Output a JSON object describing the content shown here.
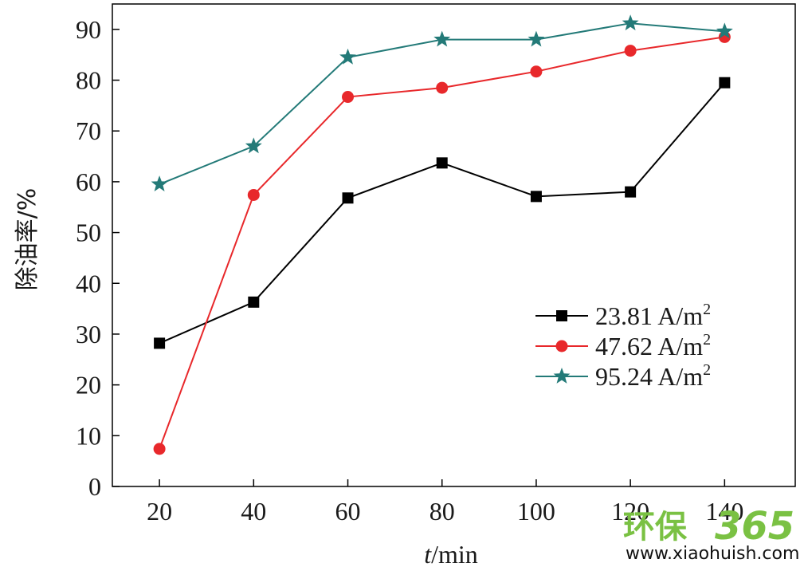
{
  "chart_data": {
    "type": "line",
    "x": [
      20,
      40,
      60,
      80,
      100,
      120,
      140
    ],
    "xticks": [
      "20",
      "40",
      "60",
      "80",
      "100",
      "120",
      "140"
    ],
    "yticks": [
      "0",
      "10",
      "20",
      "30",
      "40",
      "50",
      "60",
      "70",
      "80",
      "90"
    ],
    "xlim": [
      10,
      155
    ],
    "ylim": [
      0,
      95
    ],
    "xlabel": {
      "italic": "t",
      "rest": "/min"
    },
    "ylabel": "除油率/%",
    "grid": false,
    "legend_position": "center-right",
    "series": [
      {
        "name": "23.81 A/m",
        "superscript": "2",
        "color": "#000000",
        "marker": "square",
        "values": [
          28.2,
          36.3,
          56.8,
          63.7,
          57.1,
          58.0,
          79.5
        ]
      },
      {
        "name": "47.62 A/m",
        "superscript": "2",
        "color": "#e8282b",
        "marker": "circle",
        "values": [
          7.4,
          57.4,
          76.7,
          78.5,
          81.7,
          85.8,
          88.5
        ]
      },
      {
        "name": "95.24 A/m",
        "superscript": "2",
        "color": "#237a78",
        "marker": "star",
        "values": [
          59.5,
          67.0,
          84.5,
          88.0,
          88.0,
          91.2,
          89.6
        ]
      }
    ]
  },
  "watermark": {
    "brand": "环保",
    "number": "365",
    "url": "www.xiaohuish.com"
  }
}
